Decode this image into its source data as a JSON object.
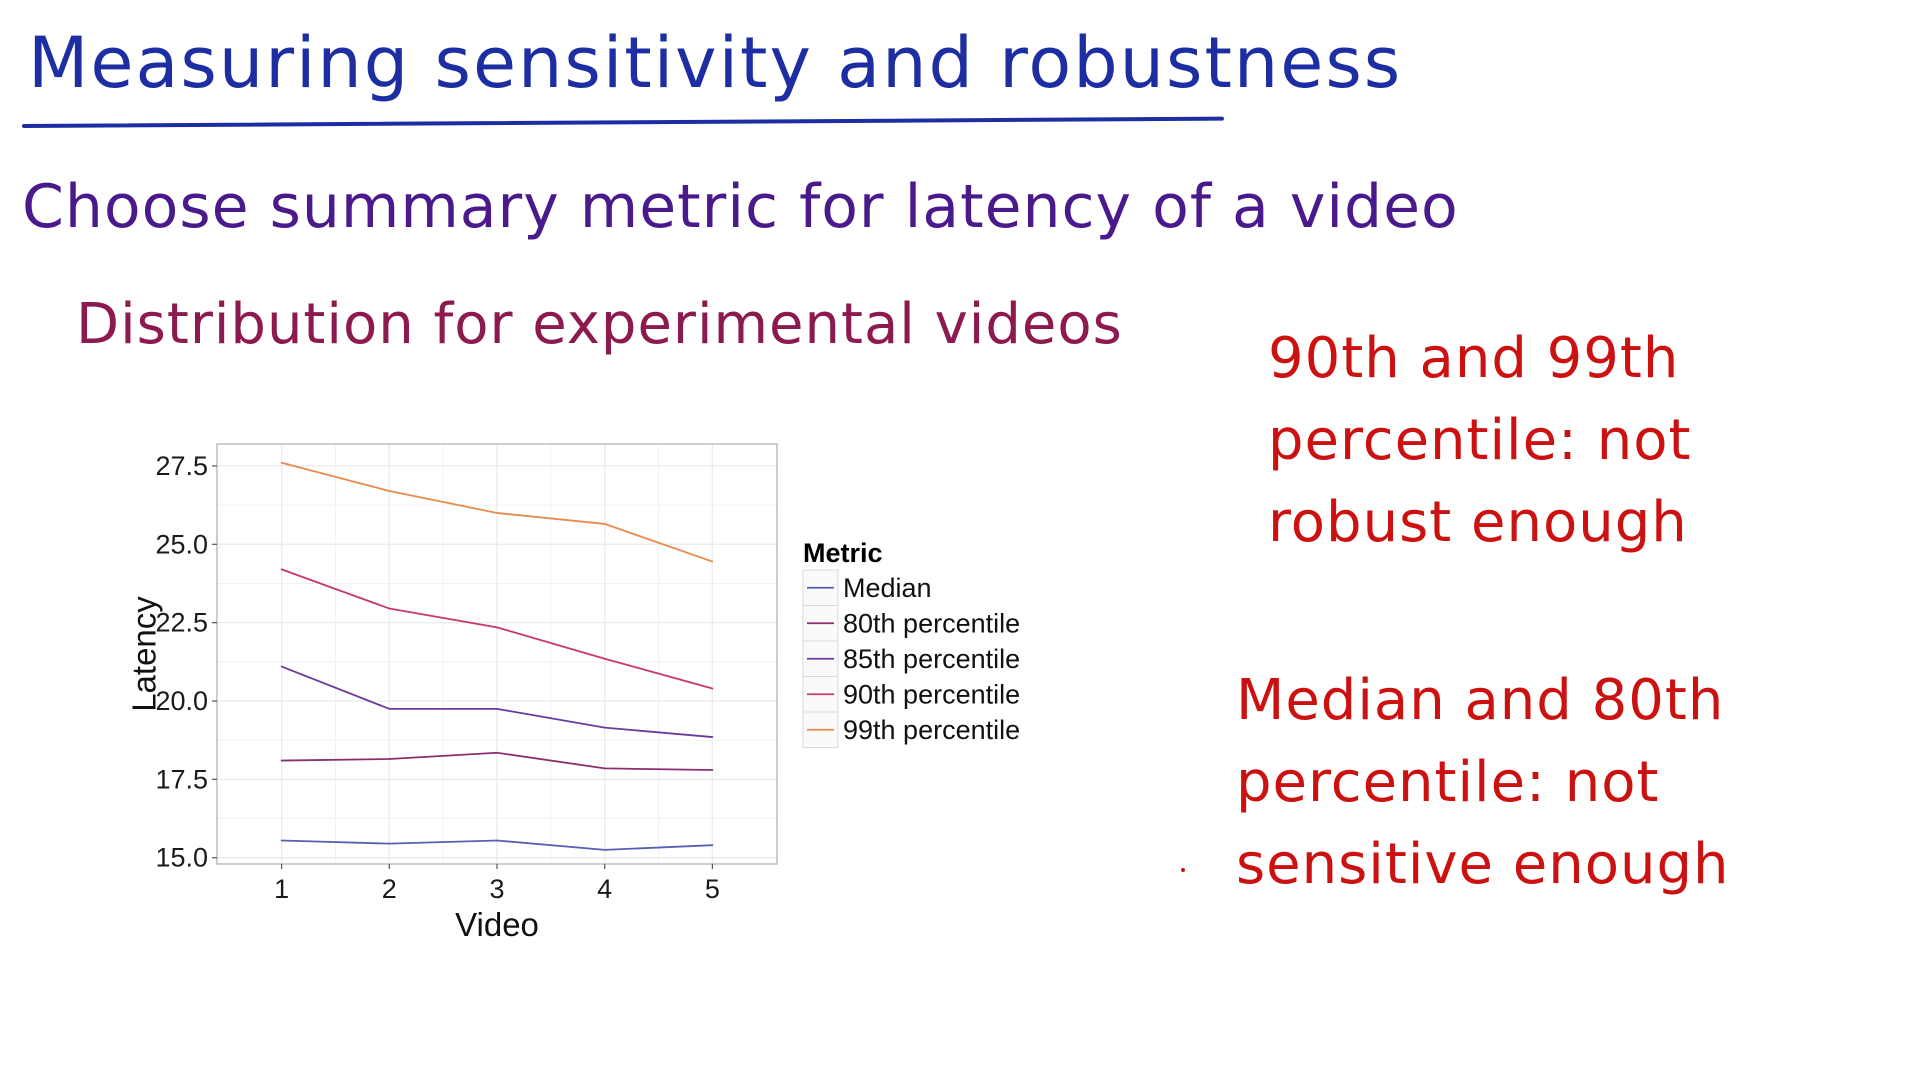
{
  "title": "Measuring sensitivity and robustness",
  "subtitle": "Choose summary metric for latency of a video",
  "subheading": "Distribution for experimental videos",
  "notes": [
    [
      "90th and 99th",
      "percentile: not",
      "robust enough"
    ],
    [
      "Median and 80th",
      "percentile: not",
      "sensitive enough"
    ]
  ],
  "colors": {
    "title": "#1d2ea3",
    "subtitle": "#4a1a8c",
    "subheading": "#8c1a4f",
    "notes": "#cc1111",
    "grid": "#ececec",
    "panel_border": "#bdbdbd",
    "axis_text": "#1a1a1a"
  },
  "chart_data": {
    "type": "line",
    "title": "",
    "xlabel": "Video",
    "ylabel": "Latency",
    "x": [
      1,
      2,
      3,
      4,
      5
    ],
    "xlim": [
      0.4,
      5.6
    ],
    "ylim": [
      14.8,
      28.2
    ],
    "yticks": [
      15.0,
      17.5,
      20.0,
      22.5,
      25.0,
      27.5
    ],
    "ytick_labels": [
      "15.0",
      "17.5",
      "20.0",
      "22.5",
      "25.0",
      "27.5"
    ],
    "xtick_labels": [
      "1",
      "2",
      "3",
      "4",
      "5"
    ],
    "grid": true,
    "legend": {
      "title": "Metric",
      "position": "right"
    },
    "series": [
      {
        "name": "Median",
        "color": "#5561b3",
        "values": [
          15.55,
          15.45,
          15.55,
          15.25,
          15.4
        ]
      },
      {
        "name": "80th percentile",
        "color": "#8b2f6e",
        "values": [
          18.1,
          18.15,
          18.35,
          17.85,
          17.8
        ]
      },
      {
        "name": "85th percentile",
        "color": "#6a3a9e",
        "values": [
          21.1,
          19.75,
          19.75,
          19.15,
          18.85
        ]
      },
      {
        "name": "90th percentile",
        "color": "#c93a63",
        "values": [
          24.2,
          22.95,
          22.35,
          21.35,
          20.4
        ]
      },
      {
        "name": "99th percentile",
        "color": "#e98a4f",
        "values": [
          27.6,
          26.7,
          26.0,
          25.65,
          24.45
        ]
      }
    ]
  }
}
